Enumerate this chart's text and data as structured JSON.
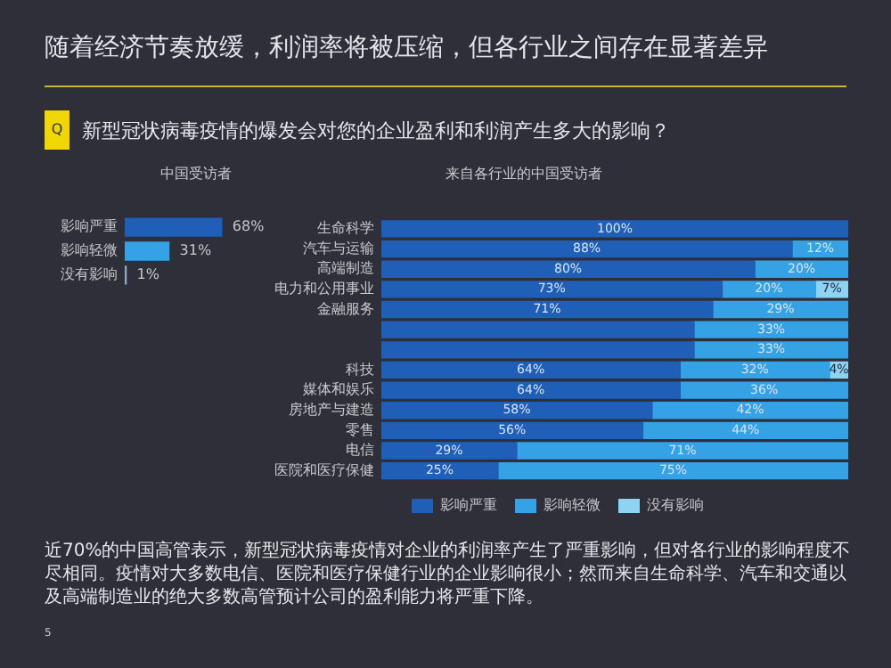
{
  "chart_data": [
    {
      "type": "bar",
      "orientation": "horizontal",
      "title": "中国受访者",
      "annotations": [
        "随着经济节奏放缓，利润率将被压缩，但各行业之间存在显著差异",
        "Q",
        "新型冠状病毒疫情的爆发会对您的企业盈利和利润产生多大的影响？"
      ],
      "categories": [
        "影响严重",
        "影响轻微",
        "没有影响"
      ],
      "values": [
        68,
        31,
        1
      ],
      "colors": [
        "#1f5fb8",
        "#35a2e6",
        "#8aaec4"
      ],
      "value_labels": [
        "68%",
        "31%",
        "1%"
      ],
      "tick_labels": "y",
      "grid": false,
      "legend": false
    },
    {
      "type": "bar",
      "orientation": "horizontal",
      "stacked": true,
      "title": "来自各行业的中国受访者",
      "annotations": [
        "近70%的中国高管表示，新型冠状病毒疫情对企业的利润率产生了严重影响，但对各行业的影响程度不尽相同。疫情对大多数电信、医院和医疗保健行业的企业影响很小；然而来自生命科学、汽车和交通以及高端制造业的绝大多数高管预计公司的盈利能力将严重下降。",
        "5"
      ],
      "categories": [
        "生命科学",
        "汽车与运输",
        "高端制造",
        "电力和公用事业",
        "金融服务",
        null,
        null,
        "科技",
        "媒体和娱乐",
        "房地产与建造",
        "零售",
        "电信",
        "医院和医疗保健"
      ],
      "series": [
        {
          "name": "影响严重",
          "color": "#1f5fb8",
          "values": [
            100,
            88,
            80,
            73,
            71,
            67,
            67,
            64,
            64,
            58,
            56,
            29,
            25
          ],
          "value_labels": [
            "100%",
            "88%",
            "80%",
            "73%",
            "71%",
            null,
            null,
            "64%",
            "64%",
            "58%",
            "56%",
            "29%",
            "25%"
          ]
        },
        {
          "name": "影响轻微",
          "color": "#35a2e6",
          "values": [
            null,
            12,
            20,
            20,
            29,
            33,
            33,
            32,
            36,
            42,
            44,
            71,
            75
          ],
          "value_labels": [
            null,
            "12%",
            "20%",
            "20%",
            "29%",
            "33%",
            "33%",
            "32%",
            "36%",
            "42%",
            "44%",
            "71%",
            "75%"
          ]
        },
        {
          "name": "没有影响",
          "color": "#8fd3f2",
          "values": [
            null,
            null,
            null,
            7,
            null,
            null,
            null,
            4,
            null,
            null,
            null,
            null,
            null
          ],
          "value_labels": [
            null,
            null,
            null,
            "7%",
            null,
            null,
            null,
            "4%",
            null,
            null,
            null,
            null,
            null
          ]
        }
      ],
      "tick_labels": "y",
      "grid": false,
      "legend": "bottom"
    }
  ]
}
